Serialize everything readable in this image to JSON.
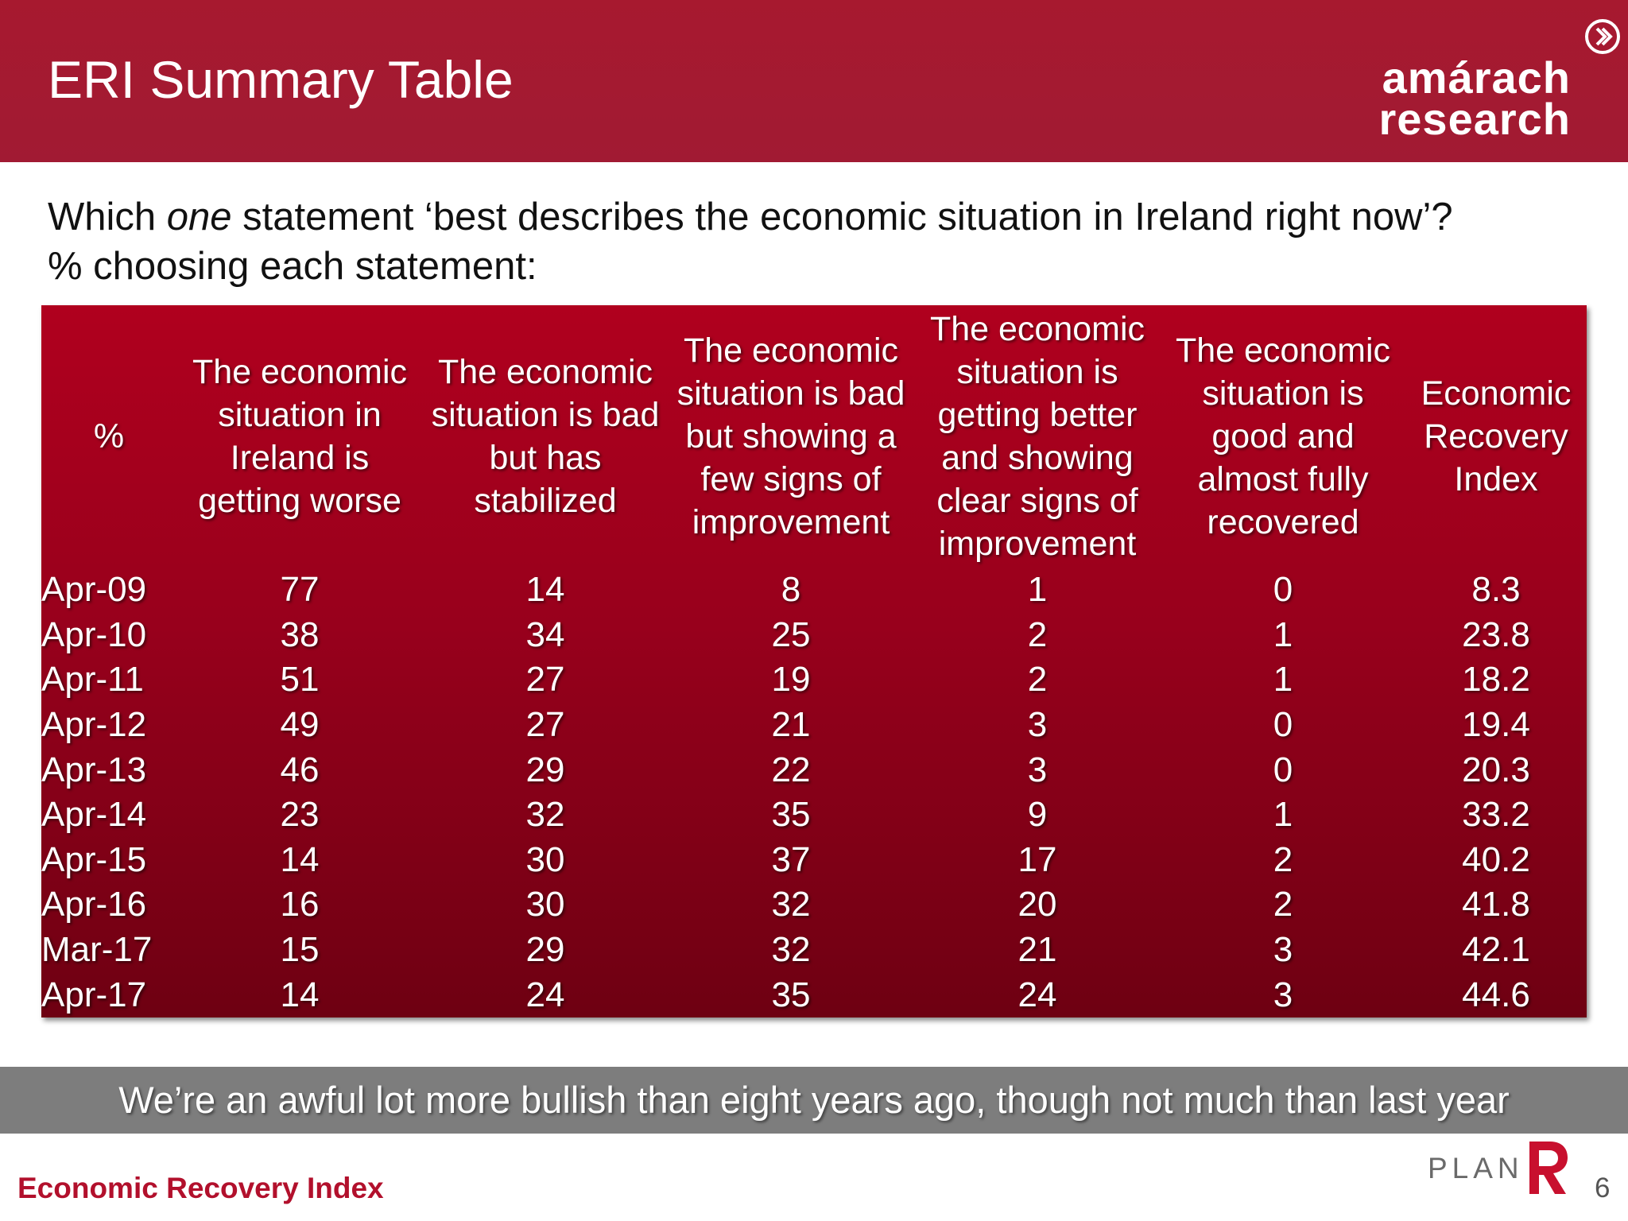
{
  "header": {
    "title": "ERI Summary Table",
    "logo_line1": "amárach",
    "logo_line2": "research",
    "background_color": "#a7192f",
    "logo_icon": "chevron-right-circle-icon"
  },
  "question": {
    "before_emphasis": "Which ",
    "emphasis": "one",
    "after_emphasis": " statement ‘best describes the economic situation in Ireland right now’?",
    "line2": "% choosing each statement:"
  },
  "table": {
    "columns": [
      "%",
      "The economic situation in Ireland is getting worse",
      "The economic situation is bad but has stabilized",
      "The economic situation is bad but showing a few signs of improvement",
      "The economic situation is getting better and showing clear signs of improvement",
      "The economic situation is good and almost fully recovered",
      "Economic Recovery Index"
    ],
    "rows": [
      [
        "Apr-09",
        "77",
        "14",
        "8",
        "1",
        "0",
        "8.3"
      ],
      [
        "Apr-10",
        "38",
        "34",
        "25",
        "2",
        "1",
        "23.8"
      ],
      [
        "Apr-11",
        "51",
        "27",
        "19",
        "2",
        "1",
        "18.2"
      ],
      [
        "Apr-12",
        "49",
        "27",
        "21",
        "3",
        "0",
        "19.4"
      ],
      [
        "Apr-13",
        "46",
        "29",
        "22",
        "3",
        "0",
        "20.3"
      ],
      [
        "Apr-14",
        "23",
        "32",
        "35",
        "9",
        "1",
        "33.2"
      ],
      [
        "Apr-15",
        "14",
        "30",
        "37",
        "17",
        "2",
        "40.2"
      ],
      [
        "Apr-16",
        "16",
        "30",
        "32",
        "20",
        "2",
        "41.8"
      ],
      [
        "Mar-17",
        "15",
        "29",
        "32",
        "21",
        "3",
        "42.1"
      ],
      [
        "Apr-17",
        "14",
        "24",
        "35",
        "24",
        "3",
        "44.6"
      ]
    ],
    "background_color": "#a8001d"
  },
  "footer": {
    "banner_text": "We’re an awful lot more bullish than eight years ago, though not much than last year",
    "left_label": "Economic Recovery Index",
    "plan_text": "PLAN",
    "plan_icon": "plan-r-logo-icon",
    "page_number": "6",
    "accent_color": "#b2102c"
  }
}
